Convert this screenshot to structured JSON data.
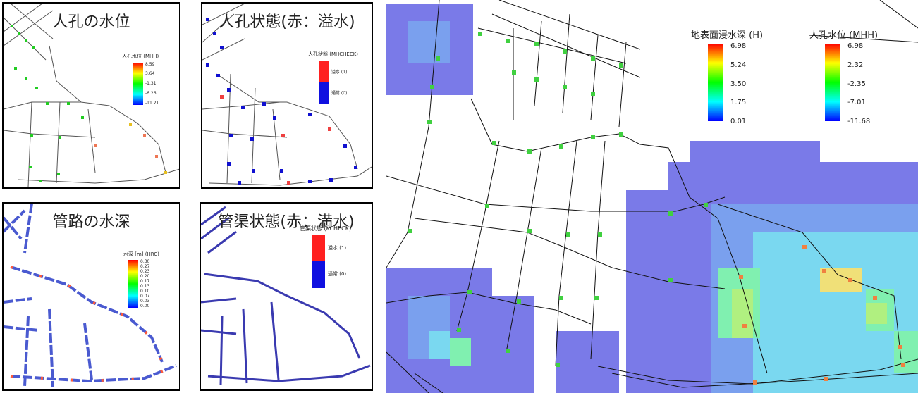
{
  "panels": {
    "manhole_level": {
      "title": "人孔の水位",
      "legend_title": "人孔水位 (MHH)",
      "ticks": [
        "8.59",
        "3.64",
        "-1.31",
        "-6.26",
        "-11.21"
      ]
    },
    "manhole_state": {
      "title": "人孔状態(赤：溢水)",
      "legend_title": "人孔状態 (MHCHECK)",
      "labels": [
        "溢水 (1)",
        "通常 (0)"
      ]
    },
    "pipe_depth": {
      "title": "管路の水深",
      "legend_title": "水深 [m] (HRC)",
      "ticks": [
        "0.30",
        "0.27",
        "0.23",
        "0.20",
        "0.17",
        "0.13",
        "0.10",
        "0.07",
        "0.03",
        "0.00"
      ]
    },
    "pipe_state": {
      "title": "管渠状態(赤：満水)",
      "legend_title": "管渠状態 (KCHECK)",
      "labels": [
        "溢水 (1)",
        "通常 (0)"
      ]
    },
    "main_map": {
      "flood_legend": {
        "title": "地表面浸水深 (H)",
        "ticks": [
          "6.98",
          "5.24",
          "3.50",
          "1.75",
          "0.01"
        ]
      },
      "manhole_legend": {
        "title": "人孔水位 (MHH)",
        "ticks": [
          "6.98",
          "2.32",
          "-2.35",
          "-7.01",
          "-11.68"
        ]
      }
    }
  },
  "colors": {
    "overflow": "#ff2020",
    "normal": "#1010e0",
    "pipe_blue": "#3030a8",
    "flood_low": "#7a7ae8"
  }
}
